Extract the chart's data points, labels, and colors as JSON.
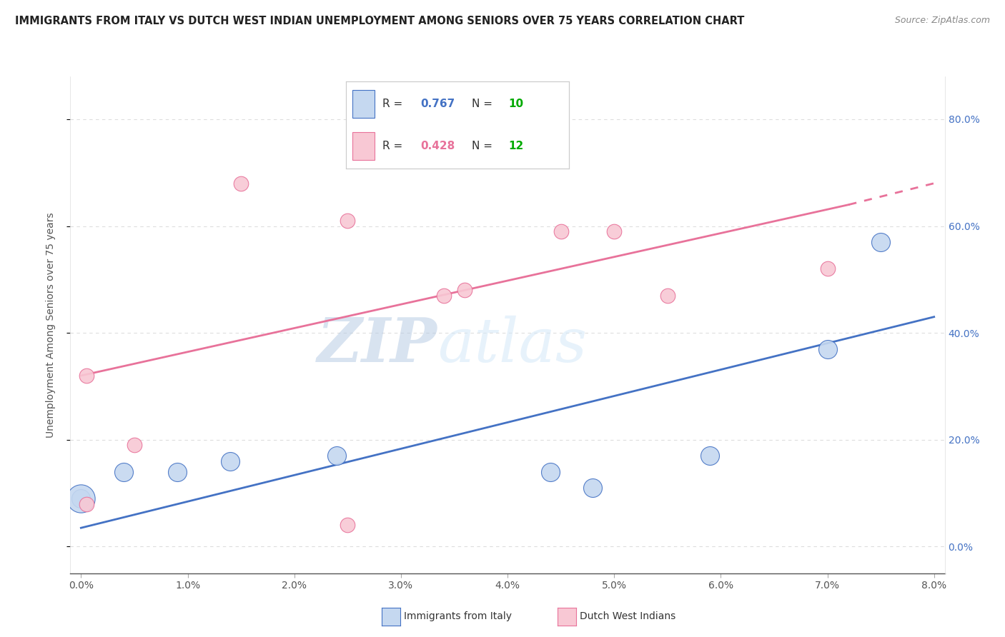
{
  "title": "IMMIGRANTS FROM ITALY VS DUTCH WEST INDIAN UNEMPLOYMENT AMONG SENIORS OVER 75 YEARS CORRELATION CHART",
  "source": "Source: ZipAtlas.com",
  "ylabel": "Unemployment Among Seniors over 75 years",
  "italy_label": "Immigrants from Italy",
  "dutch_label": "Dutch West Indians",
  "italy_R": "0.767",
  "italy_N": "10",
  "dutch_R": "0.428",
  "dutch_N": "12",
  "italy_color": "#c5d8f0",
  "italy_line_color": "#4472c4",
  "dutch_color": "#f8c8d4",
  "dutch_line_color": "#e8729a",
  "watermark_zip": "ZIP",
  "watermark_atlas": "atlas",
  "xlim": [
    0.0,
    8.0
  ],
  "ylim": [
    -5.0,
    88.0
  ],
  "yticks": [
    0,
    20,
    40,
    60,
    80
  ],
  "italy_x": [
    0.0,
    0.4,
    0.9,
    1.4,
    2.4,
    4.4,
    4.8,
    5.9,
    7.0,
    7.5
  ],
  "italy_y": [
    9.0,
    14.0,
    14.0,
    16.0,
    17.0,
    14.0,
    11.0,
    17.0,
    37.0,
    57.0
  ],
  "dutch_x": [
    0.05,
    0.05,
    0.5,
    1.5,
    2.5,
    3.4,
    3.6,
    4.5,
    5.0,
    5.5,
    7.0,
    2.5
  ],
  "dutch_y": [
    8.0,
    32.0,
    19.0,
    68.0,
    61.0,
    47.0,
    48.0,
    59.0,
    59.0,
    47.0,
    52.0,
    4.0
  ],
  "italy_line_x0": 0.0,
  "italy_line_y0": 3.5,
  "italy_line_x1": 8.0,
  "italy_line_y1": 43.0,
  "dutch_line_x0": 0.0,
  "dutch_line_y0": 32.0,
  "dutch_line_x1": 7.2,
  "dutch_line_y1": 64.0,
  "dutch_dash_x0": 7.2,
  "dutch_dash_y0": 64.0,
  "dutch_dash_x1": 8.0,
  "dutch_dash_y1": 68.0,
  "n_color": "#00aa00",
  "r_italy_color": "#4472c4",
  "r_dutch_color": "#e8729a"
}
